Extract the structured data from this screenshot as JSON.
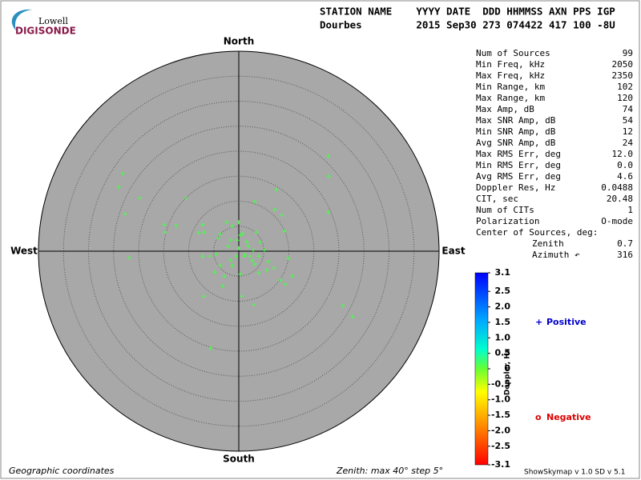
{
  "logo": {
    "top": "Lowell",
    "bottom": "DIGISONDE"
  },
  "header": {
    "line1": "STATION NAME    YYYY DATE  DDD HHMMSS AXN PPS IGP",
    "line2": "Dourbes         2015 Sep30 273 074422 417 100 -8U"
  },
  "compass": {
    "north": "North",
    "south": "South",
    "west": "West",
    "east": "East"
  },
  "stats": {
    "rows": [
      {
        "label": "Num of Sources",
        "value": "99"
      },
      {
        "label": "Min Freq, kHz",
        "value": "2050"
      },
      {
        "label": "Max Freq, kHz",
        "value": "2350"
      },
      {
        "label": "Min Range, km",
        "value": "102"
      },
      {
        "label": "Max Range, km",
        "value": "120"
      },
      {
        "label": "Max Amp, dB",
        "value": "74"
      },
      {
        "label": "Max SNR Amp, dB",
        "value": "54"
      },
      {
        "label": "Min SNR Amp, dB",
        "value": "12"
      },
      {
        "label": "Avg SNR Amp, dB",
        "value": "24"
      },
      {
        "label": "Max RMS Err, deg",
        "value": "12.0"
      },
      {
        "label": "Min RMS Err, deg",
        "value": "0.0"
      },
      {
        "label": "Avg RMS Err, deg",
        "value": "4.6"
      },
      {
        "label": "Doppler Res, Hz",
        "value": "0.0488"
      },
      {
        "label": "CIT, sec",
        "value": "20.48"
      },
      {
        "label": "Num of CITs",
        "value": "1"
      },
      {
        "label": "Polarization",
        "value": "O-mode"
      }
    ],
    "center": {
      "title": "Center of Sources, deg:",
      "rows": [
        {
          "label": "Zenith",
          "value": "0.7"
        },
        {
          "label": "Azimuth ↶",
          "value": "316"
        }
      ]
    }
  },
  "colorbar": {
    "label": "Doppler, Hz",
    "lim": [
      -3.1,
      3.1
    ],
    "ticks": [
      3.1,
      2.5,
      {
        "value": 2,
        "label": "2.0"
      },
      1.5,
      {
        "value": 1,
        "label": "1.0"
      },
      0.5,
      0,
      -0.5,
      {
        "value": -1,
        "label": "-1.0"
      },
      -1.5,
      {
        "value": -2,
        "label": "-2.0"
      },
      -2.5,
      -3.1
    ]
  },
  "legend": {
    "positive": {
      "symbol": "+",
      "label": "Positive",
      "color": "#0000cc"
    },
    "negative": {
      "symbol": "o",
      "label": "Negative",
      "color": "#dd0000"
    }
  },
  "skymap": {
    "color": "#44ff44",
    "east": [
      -23.2,
      -24.0,
      -19.8,
      -22.7,
      -10.6,
      -21.9,
      -14.9,
      -14.7,
      -12.5,
      -6.9,
      -7.2,
      -8.0,
      -4.2,
      -3.7,
      -2.4,
      -1.3,
      0,
      0.3,
      0.8,
      3.2,
      7.5,
      7.2,
      8.6,
      17.9,
      17.9,
      17.9,
      3.5,
      9.1,
      2.9,
      5.1,
      1.9,
      1.1,
      -0.5,
      -1.6,
      -3.7,
      -5.8,
      -7.2,
      -4.8,
      -2.9,
      -3.2,
      -1.3,
      0.3,
      0.6,
      3.0,
      3.2,
      5.9,
      7.0,
      9.9,
      8.3,
      9.3,
      10.7,
      20.8,
      22.7,
      -5.6,
      -7.0,
      -1.6,
      -0.3,
      1.3,
      2.2,
      0,
      -2.1,
      -4.5,
      4.0,
      2.7,
      4.3,
      1.6,
      4.0,
      5.6
    ],
    "north": [
      15.5,
      12.8,
      10.6,
      7.4,
      10.6,
      -1.3,
      5.3,
      3.8,
      5.1,
      3.8,
      5.3,
      3.7,
      2.6,
      3.4,
      5.8,
      5.0,
      5.8,
      3.2,
      3.5,
      9.9,
      12.3,
      8.3,
      7.2,
      19.0,
      15.0,
      7.8,
      3.8,
      4.0,
      0.2,
      0.2,
      1.0,
      -1.0,
      -1.0,
      -1.8,
      -2.9,
      -1.0,
      -1.0,
      -4.2,
      -5.0,
      -7.0,
      -2.9,
      -4.6,
      -9.0,
      -10.7,
      -2.6,
      -2.1,
      -3.4,
      -1.4,
      -5.8,
      -6.6,
      -5.0,
      -10.9,
      -13.1,
      -19.4,
      -9.0,
      2.2,
      2.2,
      -0.6,
      -1.0,
      0.6,
      1.0,
      -0.6,
      -1.0,
      -1.9,
      1.8,
      1.9,
      -4.3,
      -3.8
    ]
  },
  "footer": {
    "left": "Geographic coordinates",
    "center": "Zenith: max 40°  step 5°",
    "right": "ShowSkymap v 1.0  SD v 5.1"
  }
}
